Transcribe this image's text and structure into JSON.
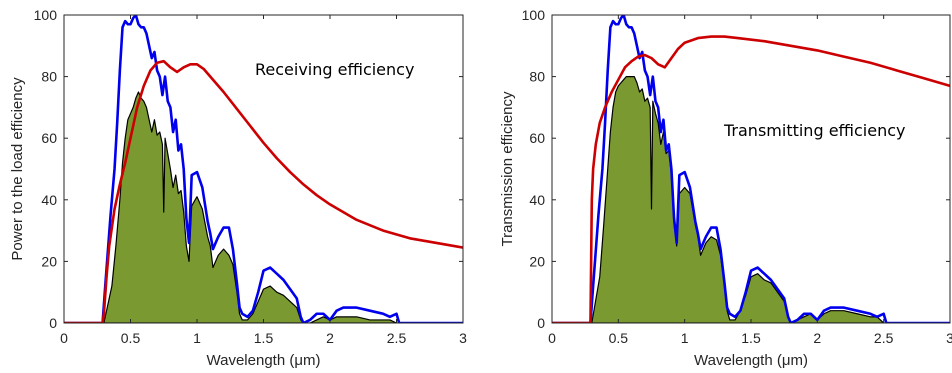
{
  "chart_data": [
    {
      "type": "area",
      "xlabel": "Wavelength (μm)",
      "ylabel": "Power to the load efficiency",
      "annotation": "Receiving efficiency",
      "xlim": [
        0,
        3
      ],
      "ylim": [
        0,
        100
      ],
      "xticks": [
        "0",
        "0.5",
        "1",
        "1.5",
        "2",
        "2.5",
        "3"
      ],
      "yticks": [
        "0",
        "20",
        "40",
        "60",
        "80",
        "100"
      ],
      "series": [
        {
          "role": "blue_outline",
          "color": "#0000EE",
          "x": [
            0,
            0.29,
            0.31,
            0.35,
            0.38,
            0.4,
            0.42,
            0.44,
            0.46,
            0.48,
            0.5,
            0.52,
            0.54,
            0.56,
            0.58,
            0.6,
            0.62,
            0.64,
            0.66,
            0.68,
            0.7,
            0.72,
            0.74,
            0.76,
            0.78,
            0.8,
            0.82,
            0.84,
            0.86,
            0.88,
            0.9,
            0.92,
            0.94,
            0.96,
            1.0,
            1.04,
            1.08,
            1.1,
            1.12,
            1.14,
            1.16,
            1.2,
            1.24,
            1.27,
            1.3,
            1.32,
            1.34,
            1.38,
            1.42,
            1.46,
            1.5,
            1.55,
            1.6,
            1.65,
            1.7,
            1.75,
            1.78,
            1.8,
            1.85,
            1.9,
            1.95,
            2.0,
            2.05,
            2.1,
            2.2,
            2.3,
            2.4,
            2.45,
            2.5,
            2.52,
            2.6,
            3.0
          ],
          "y": [
            0,
            0,
            12,
            35,
            50,
            65,
            82,
            96,
            98,
            97,
            97,
            99,
            100,
            97,
            96,
            96,
            94,
            90,
            86,
            88,
            82,
            80,
            74,
            80,
            72,
            70,
            62,
            66,
            56,
            58,
            50,
            34,
            26,
            48,
            49,
            44,
            33,
            29,
            24,
            26,
            28,
            31,
            31,
            24,
            13,
            5,
            3,
            2,
            4,
            10,
            17,
            18,
            16,
            14,
            11,
            8,
            2,
            0,
            1,
            3,
            3,
            1,
            4,
            5,
            5,
            4,
            3,
            2,
            3,
            0,
            0,
            0
          ]
        },
        {
          "role": "red_curve",
          "color": "#CC0000",
          "x": [
            0,
            0.29,
            0.3,
            0.32,
            0.34,
            0.38,
            0.42,
            0.46,
            0.5,
            0.55,
            0.6,
            0.65,
            0.7,
            0.75,
            0.8,
            0.85,
            0.9,
            0.95,
            1.0,
            1.05,
            1.1,
            1.2,
            1.3,
            1.4,
            1.5,
            1.6,
            1.7,
            1.8,
            1.9,
            2.0,
            2.2,
            2.4,
            2.6,
            2.8,
            3.0
          ],
          "y": [
            0,
            0,
            3,
            15,
            25,
            37,
            45,
            52,
            60,
            70,
            77,
            82,
            84.5,
            85,
            83,
            81.5,
            83,
            84,
            84,
            82.5,
            80,
            75,
            69.5,
            64,
            58.5,
            53.5,
            49,
            45,
            41.5,
            38.5,
            33.5,
            30,
            27.5,
            26,
            24.5
          ]
        },
        {
          "role": "green_area",
          "color": "#7A9A31",
          "x": [
            0.3,
            0.36,
            0.39,
            0.42,
            0.44,
            0.46,
            0.48,
            0.5,
            0.52,
            0.54,
            0.56,
            0.58,
            0.6,
            0.62,
            0.64,
            0.66,
            0.68,
            0.7,
            0.72,
            0.74,
            0.75,
            0.76,
            0.78,
            0.8,
            0.82,
            0.84,
            0.86,
            0.88,
            0.9,
            0.92,
            0.94,
            0.96,
            1.0,
            1.04,
            1.08,
            1.1,
            1.12,
            1.14,
            1.16,
            1.2,
            1.24,
            1.27,
            1.3,
            1.32,
            1.34,
            1.38,
            1.42,
            1.46,
            1.5,
            1.55,
            1.6,
            1.65,
            1.7,
            1.75,
            1.78,
            1.8,
            1.85,
            1.9,
            1.95,
            2.0,
            2.05,
            2.1,
            2.2,
            2.3,
            2.4,
            2.45,
            2.5
          ],
          "y": [
            0,
            12,
            25,
            40,
            52,
            60,
            66,
            68,
            70,
            73,
            75,
            73,
            72,
            70,
            66,
            62,
            66,
            61,
            62,
            58,
            36,
            60,
            55,
            50,
            44,
            48,
            42,
            43,
            36,
            25,
            20,
            38,
            41,
            37,
            28,
            25,
            18,
            20,
            22,
            24,
            22,
            19,
            10,
            3,
            1,
            1,
            3,
            7,
            11,
            12,
            10,
            9,
            7,
            5,
            1,
            0,
            0,
            1,
            2,
            1,
            2,
            2,
            2,
            1,
            1,
            1,
            0
          ]
        }
      ]
    },
    {
      "type": "area",
      "xlabel": "Wavelength (μm)",
      "ylabel": "Transmission efficiency",
      "annotation": "Transmitting efficiency",
      "xlim": [
        0,
        3
      ],
      "ylim": [
        0,
        100
      ],
      "xticks": [
        "0",
        "0.5",
        "1",
        "1.5",
        "2",
        "2.5",
        "3"
      ],
      "yticks": [
        "0",
        "20",
        "40",
        "60",
        "80",
        "100"
      ],
      "series": [
        {
          "role": "blue_outline",
          "color": "#0000EE",
          "x": [
            0,
            0.29,
            0.31,
            0.35,
            0.38,
            0.4,
            0.42,
            0.44,
            0.46,
            0.48,
            0.5,
            0.52,
            0.54,
            0.56,
            0.58,
            0.6,
            0.62,
            0.64,
            0.66,
            0.68,
            0.7,
            0.72,
            0.74,
            0.76,
            0.78,
            0.8,
            0.82,
            0.84,
            0.86,
            0.88,
            0.9,
            0.92,
            0.94,
            0.96,
            1.0,
            1.04,
            1.08,
            1.1,
            1.12,
            1.14,
            1.16,
            1.2,
            1.24,
            1.27,
            1.3,
            1.32,
            1.34,
            1.38,
            1.42,
            1.46,
            1.5,
            1.55,
            1.6,
            1.65,
            1.7,
            1.75,
            1.78,
            1.8,
            1.85,
            1.9,
            1.95,
            2.0,
            2.05,
            2.1,
            2.2,
            2.3,
            2.4,
            2.45,
            2.5,
            2.52,
            2.6,
            3.0
          ],
          "y": [
            0,
            0,
            12,
            35,
            50,
            65,
            82,
            96,
            98,
            97,
            97,
            99,
            100,
            97,
            96,
            96,
            94,
            90,
            86,
            88,
            82,
            80,
            74,
            80,
            72,
            70,
            62,
            66,
            56,
            58,
            50,
            34,
            26,
            48,
            49,
            44,
            33,
            29,
            24,
            26,
            28,
            31,
            31,
            24,
            13,
            5,
            3,
            2,
            4,
            10,
            17,
            18,
            16,
            14,
            11,
            8,
            2,
            0,
            1,
            3,
            3,
            1,
            4,
            5,
            5,
            4,
            3,
            2,
            3,
            0,
            0,
            0
          ]
        },
        {
          "role": "red_curve",
          "color": "#CC0000",
          "x": [
            0,
            0.29,
            0.3,
            0.31,
            0.33,
            0.36,
            0.4,
            0.45,
            0.5,
            0.55,
            0.6,
            0.65,
            0.7,
            0.75,
            0.8,
            0.85,
            0.9,
            0.95,
            1.0,
            1.1,
            1.2,
            1.3,
            1.4,
            1.6,
            1.8,
            2.0,
            2.2,
            2.4,
            2.6,
            2.8,
            3.0
          ],
          "y": [
            0,
            0,
            40,
            50,
            58,
            65,
            70,
            75,
            79,
            83,
            85,
            86.5,
            87,
            86,
            84,
            83,
            86,
            89,
            91,
            92.5,
            93,
            93,
            92.5,
            91.5,
            90,
            88.5,
            86.5,
            84.5,
            82,
            79.5,
            77
          ]
        },
        {
          "role": "green_area",
          "color": "#7A9A31",
          "x": [
            0.3,
            0.36,
            0.39,
            0.42,
            0.44,
            0.46,
            0.48,
            0.5,
            0.52,
            0.54,
            0.56,
            0.58,
            0.6,
            0.62,
            0.64,
            0.66,
            0.68,
            0.7,
            0.72,
            0.74,
            0.75,
            0.76,
            0.78,
            0.8,
            0.82,
            0.84,
            0.86,
            0.88,
            0.9,
            0.92,
            0.94,
            0.96,
            1.0,
            1.04,
            1.08,
            1.1,
            1.12,
            1.14,
            1.16,
            1.2,
            1.24,
            1.27,
            1.3,
            1.32,
            1.34,
            1.38,
            1.42,
            1.46,
            1.5,
            1.55,
            1.6,
            1.65,
            1.7,
            1.75,
            1.78,
            1.8,
            1.85,
            1.9,
            1.95,
            2.0,
            2.05,
            2.1,
            2.2,
            2.3,
            2.4,
            2.45,
            2.5
          ],
          "y": [
            0,
            15,
            32,
            50,
            62,
            70,
            75,
            77,
            78,
            79,
            80,
            80,
            80,
            80,
            78,
            75,
            76,
            72,
            73,
            70,
            37,
            72,
            68,
            65,
            58,
            62,
            55,
            56,
            48,
            32,
            25,
            42,
            44,
            42,
            32,
            28,
            22,
            24,
            26,
            28,
            27,
            22,
            12,
            4,
            1,
            1,
            4,
            9,
            15,
            16,
            14,
            13,
            10,
            7,
            2,
            0,
            1,
            2,
            3,
            1,
            3,
            4,
            4,
            3,
            2,
            2,
            0
          ]
        }
      ]
    }
  ]
}
